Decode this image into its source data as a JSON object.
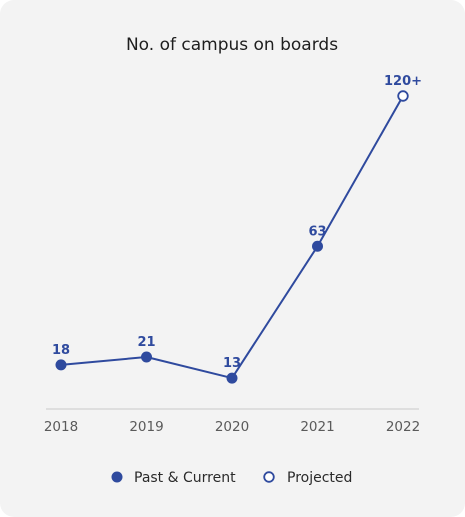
{
  "chart_data": {
    "type": "line",
    "title": "No. of campus on boards",
    "categories": [
      "2018",
      "2019",
      "2020",
      "2021",
      "2022"
    ],
    "values": [
      18,
      21,
      13,
      63,
      120
    ],
    "data_labels": [
      "18",
      "21",
      "13",
      "63",
      "120+"
    ],
    "point_types": [
      "past",
      "past",
      "past",
      "past",
      "projected"
    ],
    "ylim": [
      10,
      120
    ],
    "grid": false,
    "legend": {
      "placement": "bottom",
      "items": [
        {
          "label": "Past & Current",
          "marker": "filled"
        },
        {
          "label": "Projected",
          "marker": "hollow"
        }
      ]
    },
    "colors": {
      "series": "#2f4a9e",
      "axis": "#c8c8c8",
      "background": "#f3f3f3"
    }
  }
}
